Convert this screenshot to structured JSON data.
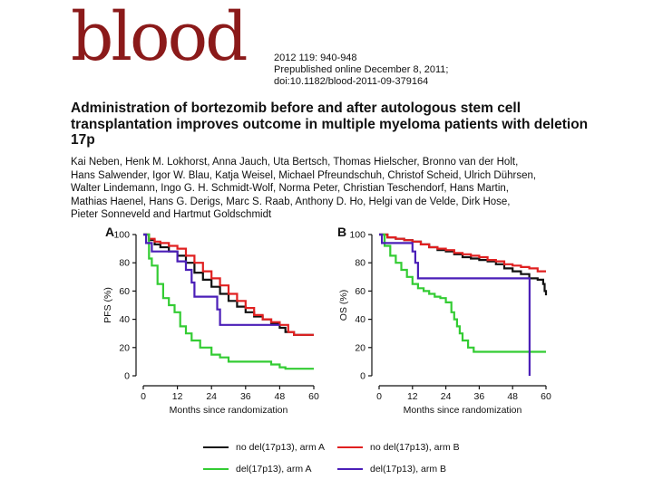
{
  "header": {
    "logo_text": "blood",
    "citation_lines": [
      "2012 119: 940-948",
      "Prepublished online December 8, 2011;",
      "doi:10.1182/blood-2011-09-379164"
    ]
  },
  "article": {
    "title": "Administration of bortezomib before and after autologous stem cell transplantation improves outcome in multiple myeloma patients with deletion 17p",
    "author_lines": [
      "Kai Neben, Henk M. Lokhorst, Anna Jauch, Uta Bertsch, Thomas Hielscher, Bronno van der Holt,",
      "Hans Salwender, Igor W. Blau, Katja Weisel, Michael Pfreundschuh, Christof Scheid, Ulrich Dührsen,",
      "Walter Lindemann, Ingo G. H. Schmidt-Wolf, Norma Peter, Christian Teschendorf, Hans Martin,",
      "Mathias Haenel, Hans G. Derigs, Marc S. Raab, Anthony D. Ho, Helgi van de Velde, Dirk Hose,",
      "Pieter Sonneveld and Hartmut Goldschmidt"
    ]
  },
  "colors": {
    "black": "#111111",
    "red": "#e02020",
    "green": "#33cc33",
    "purple": "#4b1fb8"
  },
  "legend": [
    {
      "label": "no del(17p13), arm A",
      "color": "#111111"
    },
    {
      "label": "no del(17p13), arm B",
      "color": "#e02020"
    },
    {
      "label": "del(17p13), arm A",
      "color": "#33cc33"
    },
    {
      "label": "del(17p13), arm B",
      "color": "#4b1fb8"
    }
  ],
  "chart_data": [
    {
      "type": "line",
      "panel": "A",
      "ylabel": "PFS (%)",
      "xlabel": "Months since randomization",
      "xlim": [
        0,
        60
      ],
      "ylim": [
        0,
        100
      ],
      "xticks": [
        0,
        12,
        24,
        36,
        48,
        60
      ],
      "yticks": [
        0,
        20,
        40,
        60,
        80,
        100
      ],
      "series": [
        {
          "name": "no del(17p13), arm A",
          "color": "#111111",
          "x": [
            0,
            2,
            4,
            6,
            9,
            12,
            15,
            18,
            21,
            24,
            27,
            30,
            33,
            36,
            39,
            42,
            45,
            48,
            50,
            53,
            60
          ],
          "y": [
            100,
            96,
            93,
            91,
            88,
            85,
            80,
            73,
            68,
            63,
            58,
            53,
            49,
            45,
            42,
            40,
            37,
            34,
            31,
            29,
            29
          ]
        },
        {
          "name": "no del(17p13), arm B",
          "color": "#e02020",
          "x": [
            0,
            2,
            4,
            6,
            9,
            12,
            15,
            18,
            21,
            24,
            27,
            30,
            33,
            36,
            39,
            42,
            45,
            48,
            51,
            53,
            60
          ],
          "y": [
            100,
            97,
            95,
            94,
            92,
            90,
            85,
            80,
            74,
            69,
            64,
            58,
            53,
            48,
            43,
            40,
            38,
            36,
            31,
            29,
            29
          ]
        },
        {
          "name": "del(17p13), arm A",
          "color": "#33cc33",
          "x": [
            0,
            2,
            3,
            5,
            7,
            9,
            11,
            13,
            15,
            17,
            20,
            24,
            27,
            30,
            36,
            42,
            45,
            48,
            50,
            60
          ],
          "y": [
            100,
            83,
            78,
            65,
            55,
            50,
            45,
            35,
            30,
            25,
            20,
            15,
            13,
            10,
            10,
            10,
            8,
            6,
            5,
            5
          ]
        },
        {
          "name": "del(17p13), arm B",
          "color": "#4b1fb8",
          "x": [
            0,
            1,
            3,
            10,
            12,
            15,
            17,
            18,
            20,
            24,
            26,
            27,
            30,
            48
          ],
          "y": [
            100,
            94,
            88,
            88,
            81,
            75,
            66,
            56,
            56,
            56,
            47,
            36,
            36,
            36
          ]
        }
      ]
    },
    {
      "type": "line",
      "panel": "B",
      "ylabel": "OS (%)",
      "xlabel": "Months since randomization",
      "xlim": [
        0,
        60
      ],
      "ylim": [
        0,
        100
      ],
      "xticks": [
        0,
        12,
        24,
        36,
        48,
        60
      ],
      "yticks": [
        0,
        20,
        40,
        60,
        80,
        100
      ],
      "series": [
        {
          "name": "no del(17p13), arm A",
          "color": "#111111",
          "x": [
            0,
            3,
            6,
            9,
            12,
            15,
            18,
            21,
            24,
            27,
            30,
            33,
            36,
            39,
            42,
            45,
            48,
            51,
            54,
            57,
            59,
            59.5,
            60
          ],
          "y": [
            100,
            98,
            97,
            96,
            95,
            93,
            91,
            89,
            88,
            86,
            84,
            83,
            82,
            81,
            79,
            76,
            74,
            72,
            69,
            68,
            65,
            60,
            57
          ]
        },
        {
          "name": "no del(17p13), arm B",
          "color": "#e02020",
          "x": [
            0,
            3,
            6,
            9,
            12,
            15,
            18,
            21,
            24,
            27,
            30,
            33,
            36,
            39,
            42,
            45,
            48,
            51,
            54,
            57,
            60
          ],
          "y": [
            100,
            98,
            97,
            96,
            95,
            93,
            91,
            90,
            89,
            87,
            86,
            85,
            84,
            82,
            81,
            79,
            78,
            77,
            76,
            74,
            74
          ]
        },
        {
          "name": "del(17p13), arm A",
          "color": "#33cc33",
          "x": [
            0,
            2,
            4,
            6,
            8,
            10,
            12,
            14,
            16,
            18,
            20,
            22,
            24,
            26,
            27,
            28,
            29,
            30,
            32,
            34,
            36,
            60
          ],
          "y": [
            100,
            92,
            85,
            80,
            75,
            70,
            65,
            62,
            60,
            58,
            56,
            55,
            52,
            45,
            40,
            35,
            30,
            25,
            20,
            17,
            17,
            17
          ]
        },
        {
          "name": "del(17p13), arm B",
          "color": "#4b1fb8",
          "x": [
            0,
            1,
            10,
            12,
            13,
            14,
            16,
            24,
            30,
            54,
            54.1
          ],
          "y": [
            100,
            94,
            94,
            88,
            80,
            69,
            69,
            69,
            69,
            69,
            0
          ]
        }
      ]
    }
  ]
}
